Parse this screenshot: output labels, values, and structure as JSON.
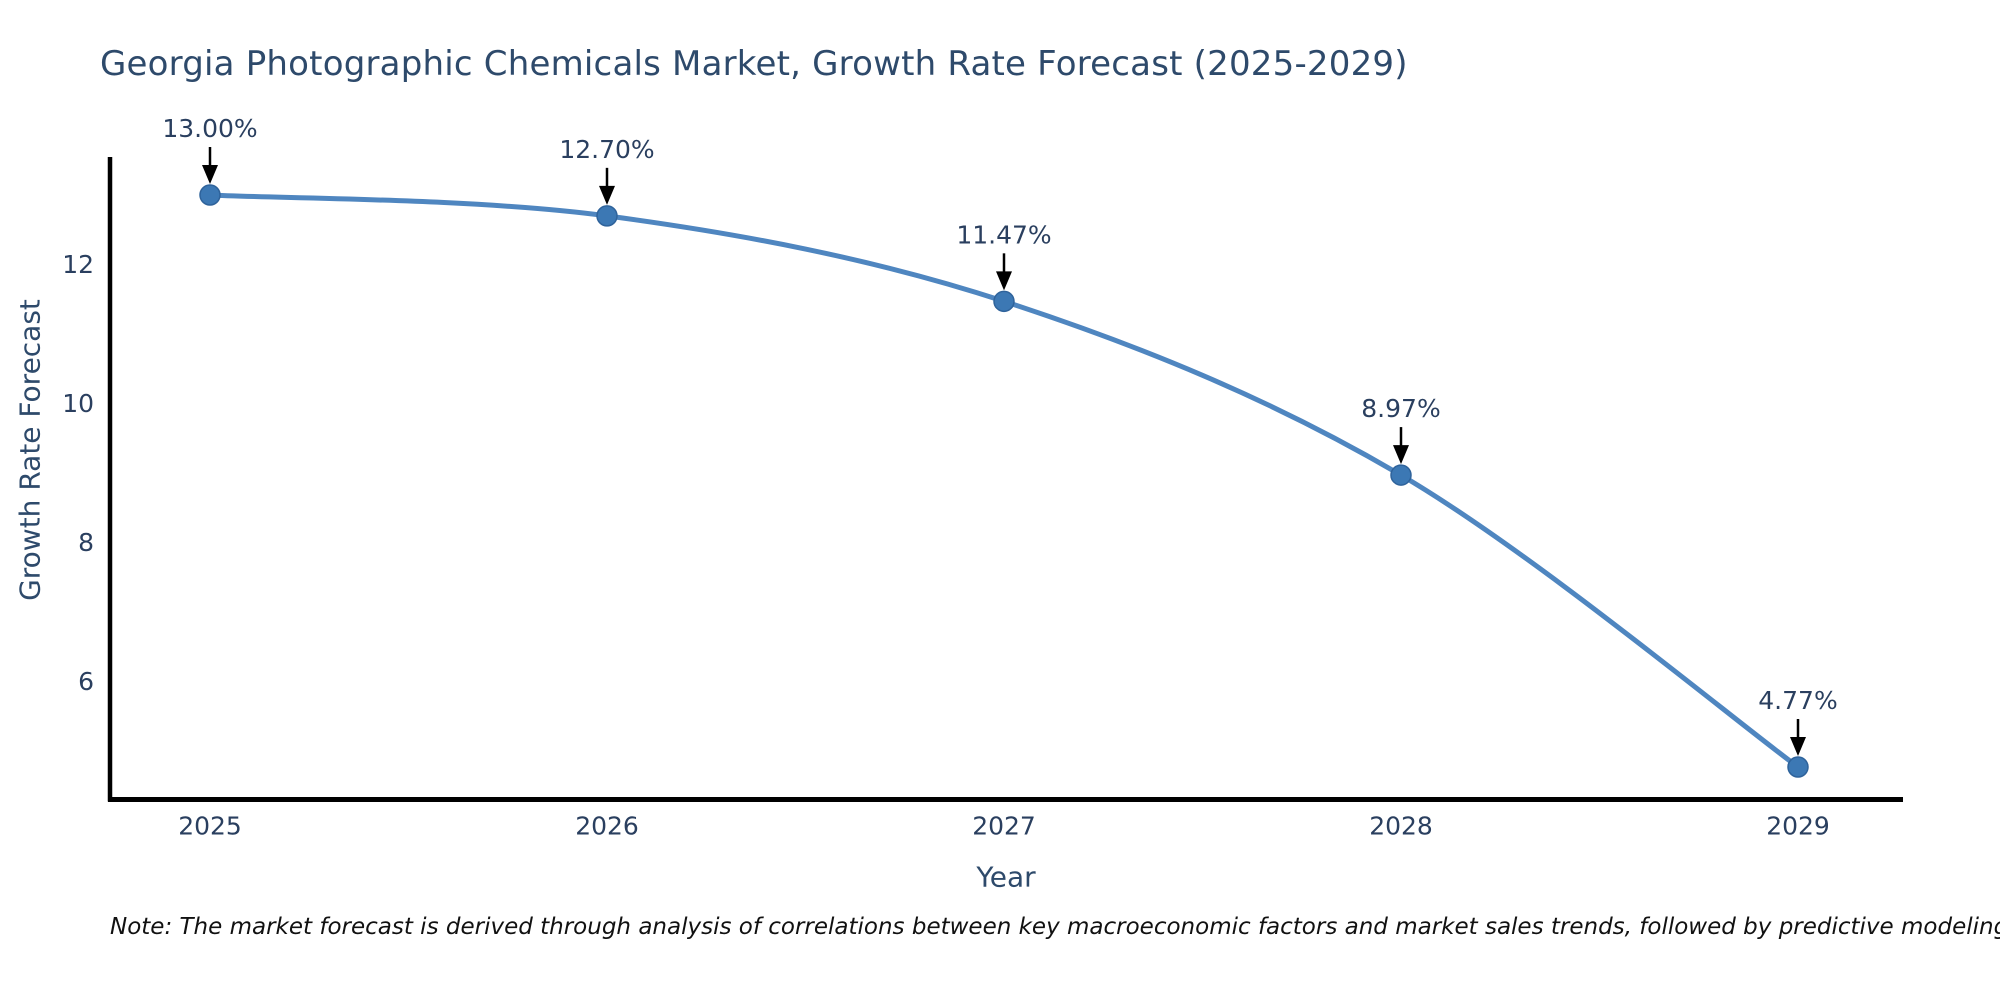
{
  "title": "Georgia Photographic Chemicals Market, Growth Rate Forecast (2025-2029)",
  "note": "Note: The market forecast is derived through analysis of correlations between key macroeconomic factors and market sales trends, followed by predictive modeling to project future sales",
  "chart_data": {
    "type": "line",
    "title": "Georgia Photographic Chemicals Market, Growth Rate Forecast (2025-2029)",
    "xlabel": "Year",
    "ylabel": "Growth Rate Forecast",
    "x": [
      2025,
      2026,
      2027,
      2028,
      2029
    ],
    "series": [
      {
        "name": "Growth Rate Forecast",
        "values": [
          13.0,
          12.7,
          11.47,
          8.97,
          4.77
        ]
      }
    ],
    "point_labels": [
      "13.00%",
      "12.70%",
      "11.47%",
      "8.97%",
      "4.77%"
    ],
    "yticks": [
      6,
      8,
      10,
      12
    ],
    "xticks": [
      "2025",
      "2026",
      "2027",
      "2028",
      "2029"
    ],
    "ylim": [
      4.2,
      13.55
    ],
    "line_shape": "spline",
    "grid": false,
    "legend": false,
    "colors": {
      "line": "#4f86c0",
      "marker_fill": "#3c78b4",
      "marker_edge": "#2f639b",
      "axis_line": "#000000",
      "tick_text": "#2a3f5f",
      "axis_title_text": "#2e4a6b",
      "annotation_text": "#2a3f5f",
      "annotation_arrow": "#000000"
    }
  }
}
